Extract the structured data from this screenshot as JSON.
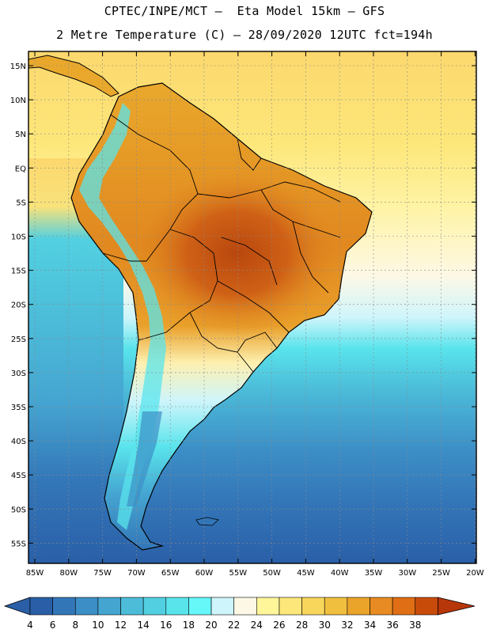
{
  "header": {
    "line1": "CPTEC/INPE/MCT –  Eta Model 15km – GFS",
    "line2": "2 Metre Temperature (C) – 28/09/2020 12UTC fct=194h"
  },
  "map": {
    "lat_labels": [
      "15N",
      "10N",
      "5N",
      "EQ",
      "5S",
      "10S",
      "15S",
      "20S",
      "25S",
      "30S",
      "35S",
      "40S",
      "45S",
      "50S",
      "55S"
    ],
    "lon_labels": [
      "85W",
      "80W",
      "75W",
      "70W",
      "65W",
      "60W",
      "55W",
      "50W",
      "45W",
      "40W",
      "35W",
      "30W",
      "25W",
      "20W"
    ]
  },
  "colorbar": {
    "labels": [
      "4",
      "6",
      "8",
      "10",
      "12",
      "14",
      "16",
      "18",
      "20",
      "22",
      "24",
      "26",
      "28",
      "30",
      "32",
      "34",
      "36",
      "38"
    ],
    "colors": [
      "#2a5fa7",
      "#3376b8",
      "#3c8ec6",
      "#45a5d1",
      "#4cbcd9",
      "#52d0e1",
      "#59e4ec",
      "#66f7f9",
      "#cef5fb",
      "#fdf8e6",
      "#fff69a",
      "#fde77a",
      "#f8d65c",
      "#f0bf3e",
      "#eaa42a",
      "#e78b22",
      "#df6e14",
      "#c94b0a",
      "#b7360a"
    ]
  },
  "theme": {
    "land_north": "#e7a62b",
    "land_hot": "#cc5e14",
    "ocean_cold": "#2a5fa7",
    "border": "#000000"
  }
}
